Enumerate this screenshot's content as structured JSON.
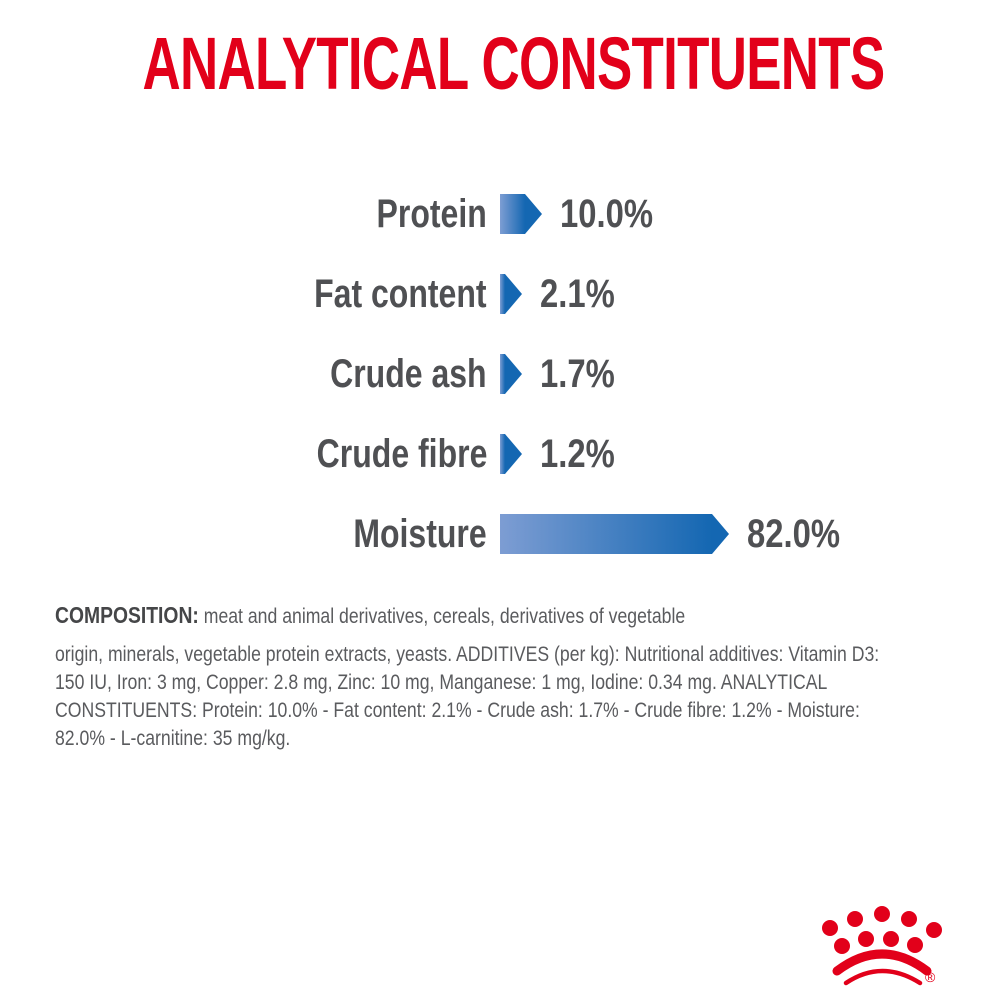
{
  "title": "ANALYTICAL CONSTITUENTS",
  "chart_data": {
    "type": "bar",
    "orientation": "horizontal",
    "title": "ANALYTICAL CONSTITUENTS",
    "categories": [
      "Protein",
      "Fat content",
      "Crude ash",
      "Crude fibre",
      "Moisture"
    ],
    "values": [
      10.0,
      2.1,
      1.7,
      1.2,
      82.0
    ],
    "value_labels": [
      "10.0%",
      "2.1%",
      "1.7%",
      "1.2%",
      "82.0%"
    ],
    "unit": "%",
    "xlabel": "",
    "ylabel": "",
    "grid": false,
    "legend": false,
    "bar_style": "right-pointing-arrow",
    "labels_position": "left-of-bar",
    "values_position": "right-of-bar"
  },
  "composition": {
    "heading": "COMPOSITION:",
    "intro": "meat and animal derivatives, cereals, derivatives of vegetable",
    "lines": [
      "origin, minerals, vegetable protein extracts, yeasts. ADDITIVES (per kg): Nutritional additives: Vitamin D3:",
      "150 IU, Iron: 3 mg, Copper: 2.8 mg, Zinc: 10 mg, Manganese: 1 mg, Iodine: 0.34 mg. ANALYTICAL",
      "CONSTITUENTS: Protein: 10.0% - Fat content: 2.1% - Crude ash: 1.7% - Crude fibre: 1.2% - Moisture:",
      "82.0% - L-carnitine: 35 mg/kg."
    ]
  },
  "branding": {
    "logo": "royal-canin-crown",
    "registered_mark": "®"
  },
  "colors": {
    "brand_red": "#e2001a",
    "text_dark": "#4f5053",
    "text_gray": "#5a5b5e",
    "heading_gray": "#454648",
    "bar_light": "#7d9dd3",
    "bar_dark": "#1467b2",
    "background": "#ffffff"
  }
}
